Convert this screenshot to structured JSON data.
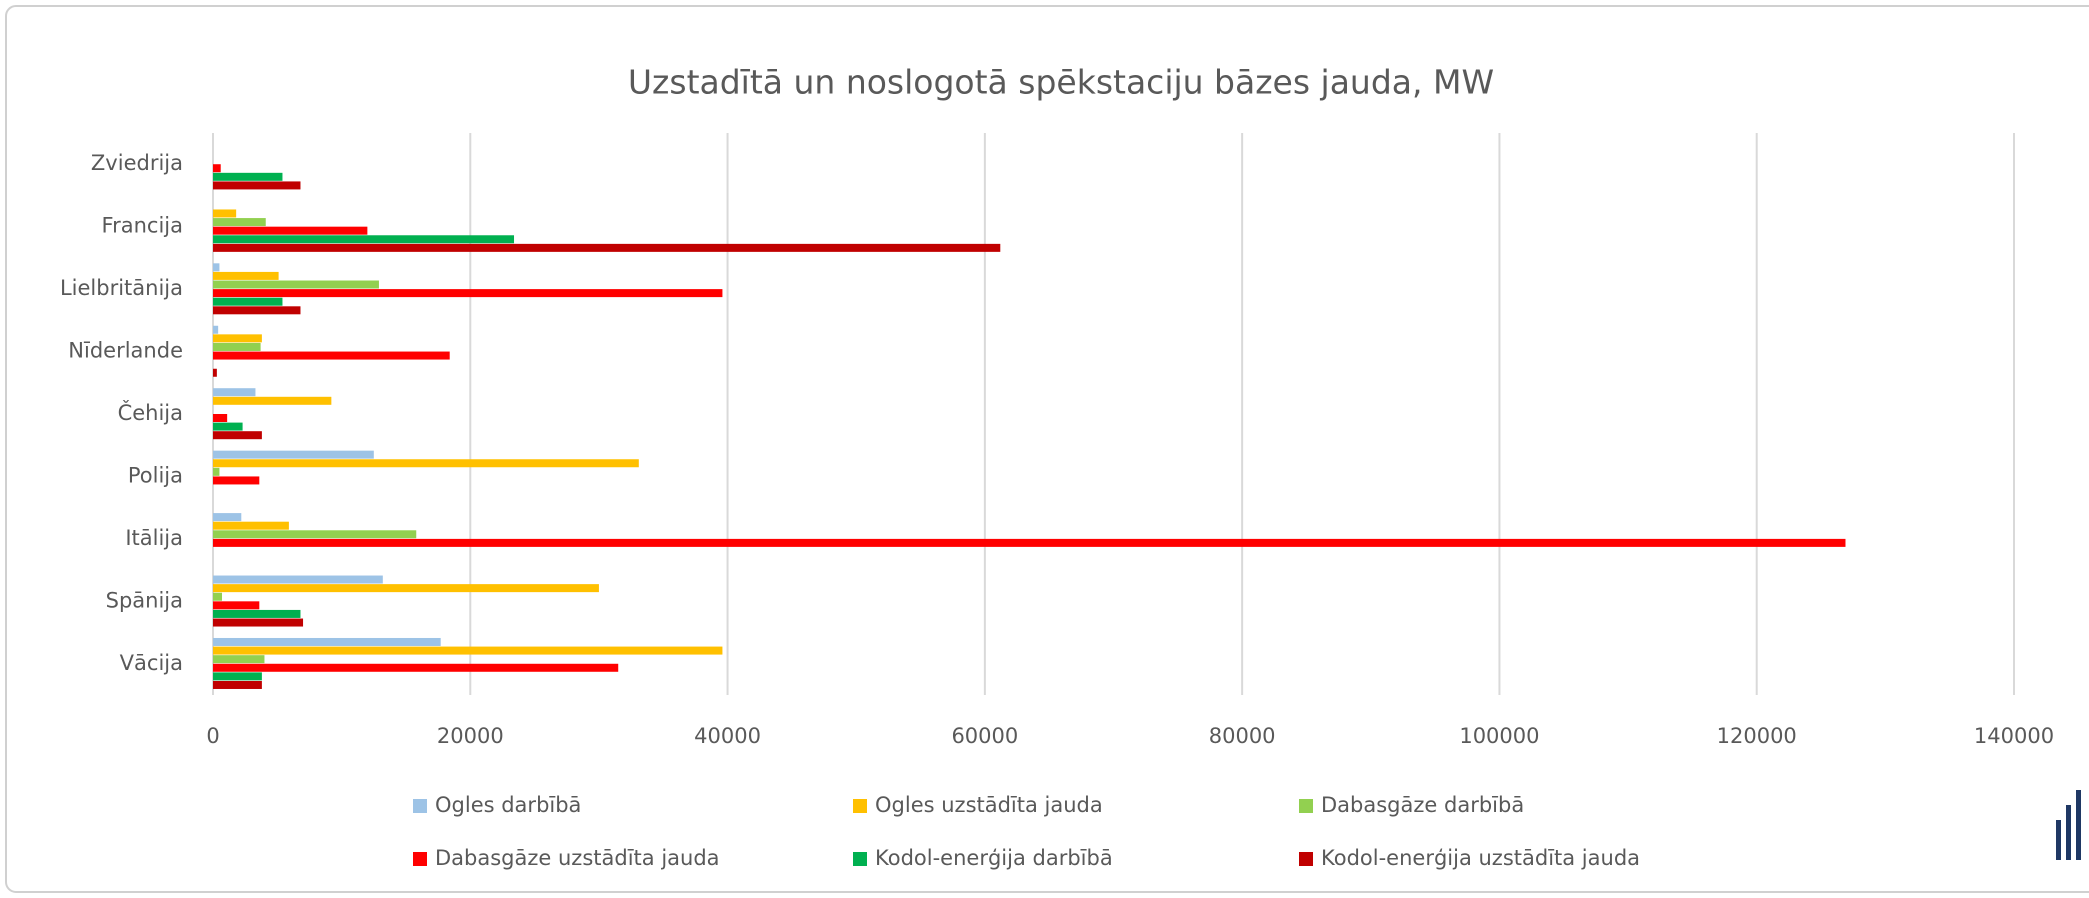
{
  "chart_data": {
    "type": "barh",
    "title": "Uzstadītā un noslogotā spēkstaciju bāzes jauda, MW",
    "categories": [
      "Zviedrija",
      "Francija",
      "Lielbritānija",
      "Nīderlande",
      "Čehija",
      "Polija",
      "Itālija",
      "Spānija",
      "Vācija"
    ],
    "series": [
      {
        "name": "Ogles darbībā",
        "color": "#9dc3e6",
        "values": [
          0,
          0,
          500,
          400,
          3300,
          12500,
          2200,
          13200,
          17700
        ]
      },
      {
        "name": "Ogles uzstādīta jauda",
        "color": "#ffc000",
        "values": [
          0,
          1800,
          5100,
          3800,
          9200,
          33100,
          5900,
          30000,
          39600
        ]
      },
      {
        "name": "Dabasgāze darbībā",
        "color": "#92d050",
        "values": [
          0,
          4100,
          12900,
          3700,
          0,
          500,
          15800,
          700,
          4000
        ]
      },
      {
        "name": "Dabasgāze uzstādīta jauda",
        "color": "#ff0000",
        "values": [
          600,
          12000,
          39600,
          18400,
          1100,
          3600,
          126900,
          3600,
          31500
        ]
      },
      {
        "name": "Kodol-enerģija darbībā",
        "color": "#00b050",
        "values": [
          5400,
          23400,
          5400,
          0,
          2300,
          0,
          0,
          6800,
          3800
        ]
      },
      {
        "name": "Kodol-enerģija uzstādīta jauda",
        "color": "#c00000",
        "values": [
          6800,
          61200,
          6800,
          300,
          3800,
          0,
          0,
          7000,
          3800
        ]
      }
    ],
    "xlim": [
      0,
      140000
    ],
    "xticks": [
      0,
      20000,
      40000,
      60000,
      80000,
      100000,
      120000,
      140000
    ],
    "grid": true,
    "legend": "bottom"
  }
}
